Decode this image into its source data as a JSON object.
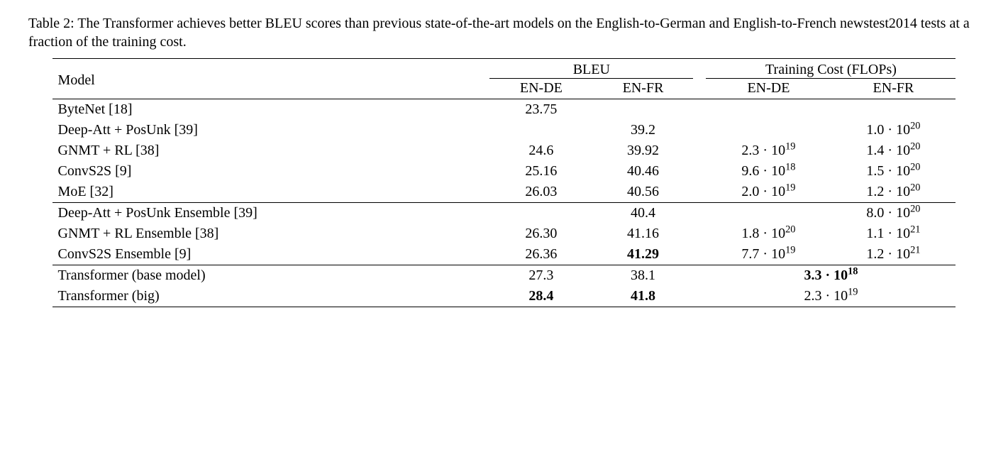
{
  "caption": "Table 2: The Transformer achieves better BLEU scores than previous state-of-the-art models on the English-to-German and English-to-French newstest2014 tests at a fraction of the training cost.",
  "headers": {
    "model": "Model",
    "bleu": "BLEU",
    "cost": "Training Cost (FLOPs)",
    "ende": "EN-DE",
    "enfr": "EN-FR"
  },
  "rows": {
    "r0": {
      "model": "ByteNet [18]",
      "bleu_de": "23.75",
      "bleu_fr": "",
      "cost_de_mant": "",
      "cost_de_exp": "",
      "cost_fr_mant": "",
      "cost_fr_exp": ""
    },
    "r1": {
      "model": "Deep-Att + PosUnk [39]",
      "bleu_de": "",
      "bleu_fr": "39.2",
      "cost_de_mant": "",
      "cost_de_exp": "",
      "cost_fr_mant": "1.0",
      "cost_fr_exp": "20"
    },
    "r2": {
      "model": "GNMT + RL [38]",
      "bleu_de": "24.6",
      "bleu_fr": "39.92",
      "cost_de_mant": "2.3",
      "cost_de_exp": "19",
      "cost_fr_mant": "1.4",
      "cost_fr_exp": "20"
    },
    "r3": {
      "model": "ConvS2S [9]",
      "bleu_de": "25.16",
      "bleu_fr": "40.46",
      "cost_de_mant": "9.6",
      "cost_de_exp": "18",
      "cost_fr_mant": "1.5",
      "cost_fr_exp": "20"
    },
    "r4": {
      "model": "MoE [32]",
      "bleu_de": "26.03",
      "bleu_fr": "40.56",
      "cost_de_mant": "2.0",
      "cost_de_exp": "19",
      "cost_fr_mant": "1.2",
      "cost_fr_exp": "20"
    },
    "r5": {
      "model": "Deep-Att + PosUnk Ensemble [39]",
      "bleu_de": "",
      "bleu_fr": "40.4",
      "cost_de_mant": "",
      "cost_de_exp": "",
      "cost_fr_mant": "8.0",
      "cost_fr_exp": "20"
    },
    "r6": {
      "model": "GNMT + RL Ensemble [38]",
      "bleu_de": "26.30",
      "bleu_fr": "41.16",
      "cost_de_mant": "1.8",
      "cost_de_exp": "20",
      "cost_fr_mant": "1.1",
      "cost_fr_exp": "21"
    },
    "r7": {
      "model": "ConvS2S Ensemble [9]",
      "bleu_de": "26.36",
      "bleu_fr": "41.29",
      "cost_de_mant": "7.7",
      "cost_de_exp": "19",
      "cost_fr_mant": "1.2",
      "cost_fr_exp": "21"
    },
    "r8": {
      "model": "Transformer (base model)",
      "bleu_de": "27.3",
      "bleu_fr": "38.1",
      "cost_de_mant": "",
      "cost_de_exp": "",
      "cost_fr_mant": "",
      "cost_fr_exp": "",
      "merged_mant": "3.3",
      "merged_exp": "18"
    },
    "r9": {
      "model": "Transformer (big)",
      "bleu_de": "28.4",
      "bleu_fr": "41.8",
      "cost_de_mant": "",
      "cost_de_exp": "",
      "cost_fr_mant": "",
      "cost_fr_exp": "",
      "merged_mant": "2.3",
      "merged_exp": "19"
    }
  },
  "sci": {
    "dot": " · 10"
  }
}
